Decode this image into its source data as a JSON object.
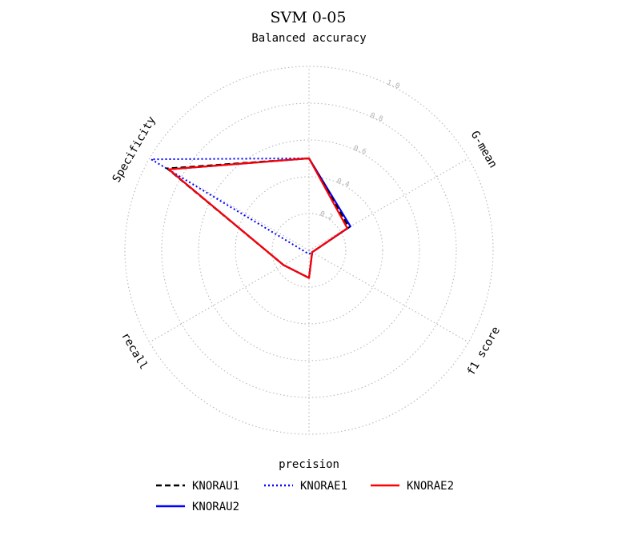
{
  "chart_data": {
    "type": "radar",
    "title": "SVM 0-05",
    "axes": [
      "Balanced accuracy",
      "G-mean",
      "f1 score",
      "precision",
      "recall",
      "Specificity"
    ],
    "radial_ticks": [
      "0.2",
      "0.4",
      "0.6",
      "0.8",
      "1.0"
    ],
    "rlim": [
      0,
      1.0
    ],
    "grid": true,
    "legend_position": "bottom",
    "series": [
      {
        "name": "KNORAU1",
        "color": "#000000",
        "style": "dashed",
        "values": [
          0.5,
          0.25,
          0.02,
          0.15,
          0.16,
          0.89
        ]
      },
      {
        "name": "KNORAE1",
        "color": "#0000ff",
        "style": "dotted",
        "values": [
          0.5,
          0.24,
          0.02,
          0.02,
          0.02,
          0.99
        ]
      },
      {
        "name": "KNORAE2",
        "color": "#ff0000",
        "style": "solid",
        "values": [
          0.5,
          0.24,
          0.02,
          0.15,
          0.16,
          0.88
        ]
      },
      {
        "name": "KNORAU2",
        "color": "#0000ff",
        "style": "solid",
        "values": [
          0.5,
          0.26,
          0.02,
          0.15,
          0.16,
          0.88
        ]
      }
    ]
  }
}
